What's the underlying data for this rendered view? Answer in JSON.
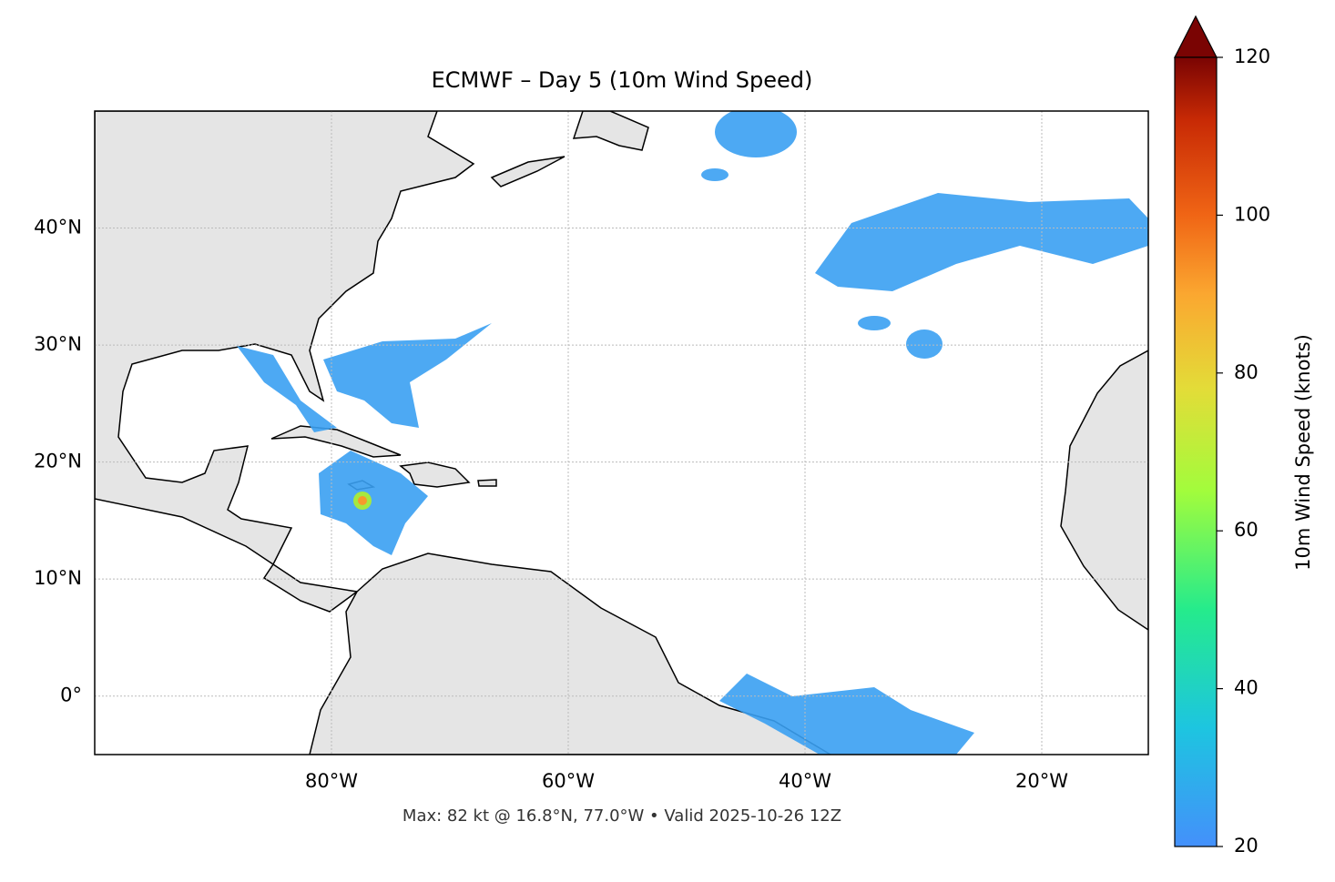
{
  "title": "ECMWF – Day 5 (10m Wind Speed)",
  "map": {
    "xlim": [
      -100,
      -11
    ],
    "ylim": [
      -5,
      50
    ],
    "xticks": [
      {
        "value": -80,
        "label": "80°W"
      },
      {
        "value": -60,
        "label": "60°W"
      },
      {
        "value": -40,
        "label": "40°W"
      },
      {
        "value": -20,
        "label": "20°W"
      }
    ],
    "yticks": [
      {
        "value": 0,
        "label": "0°"
      },
      {
        "value": 10,
        "label": "10°N"
      },
      {
        "value": 20,
        "label": "20°N"
      },
      {
        "value": 30,
        "label": "30°N"
      },
      {
        "value": 40,
        "label": "40°N"
      }
    ],
    "grid": true
  },
  "colorbar": {
    "label": "10m Wind Speed (knots)",
    "lim": [
      20,
      120
    ],
    "ticks": [
      20,
      40,
      60,
      80,
      100,
      120
    ]
  },
  "footnote": "Max: 82 kt @ 16.8°N, 77.0°W • Valid 2025-10-26 12Z"
}
